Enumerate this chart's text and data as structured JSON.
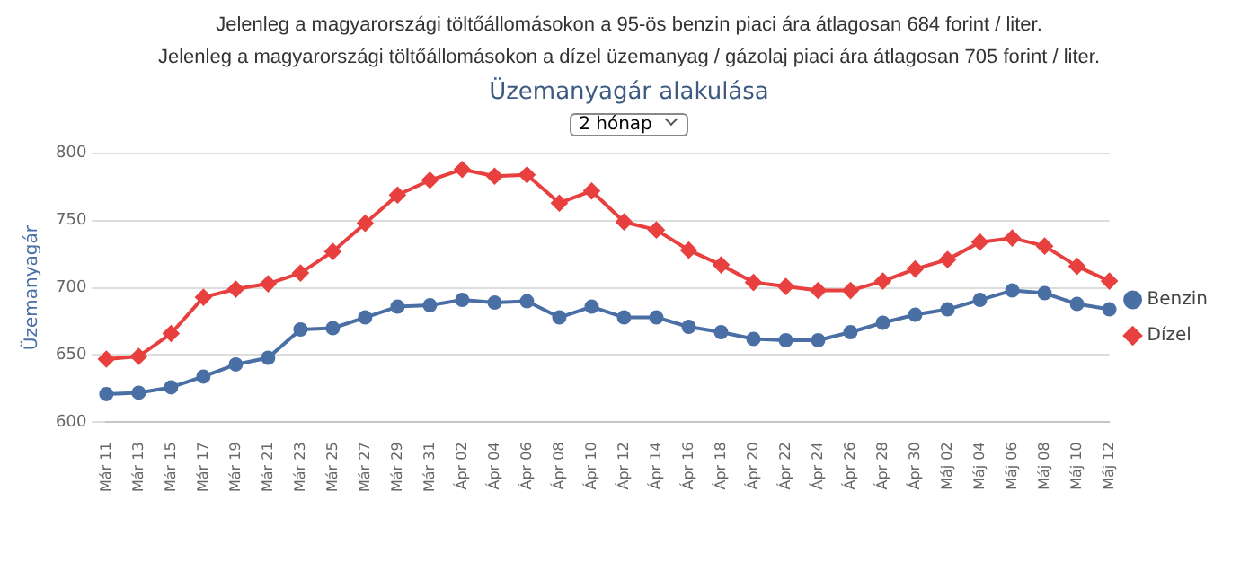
{
  "chart_data": {
    "type": "line",
    "title": "Üzemanyagár alakulása",
    "ylabel": "Üzemanyagár",
    "annotations": [
      "Jelenleg a magyarországi töltőállomásokon a 95-ös benzin piaci ára átlagosan 684 forint / liter.",
      "Jelenleg a magyarországi töltőállomásokon a dízel üzemanyag / gázolaj piaci ára átlagosan 705 forint / liter.",
      "2 hónap"
    ],
    "categories": [
      "Már 11",
      "Már 13",
      "Már 15",
      "Már 17",
      "Már 19",
      "Már 21",
      "Már 23",
      "Már 25",
      "Már 27",
      "Már 29",
      "Már 31",
      "Ápr 02",
      "Ápr 04",
      "Ápr 06",
      "Ápr 08",
      "Ápr 10",
      "Ápr 12",
      "Ápr 14",
      "Ápr 16",
      "Ápr 18",
      "Ápr 20",
      "Ápr 22",
      "Ápr 24",
      "Ápr 26",
      "Ápr 28",
      "Ápr 30",
      "Máj 02",
      "Máj 04",
      "Máj 06",
      "Máj 08",
      "Máj 10",
      "Máj 12"
    ],
    "series": [
      {
        "name": "Benzin",
        "color": "#4a6fa5",
        "marker": "circle",
        "values": [
          621,
          622,
          626,
          634,
          643,
          648,
          669,
          670,
          678,
          686,
          687,
          691,
          689,
          690,
          678,
          686,
          678,
          678,
          671,
          667,
          662,
          661,
          661,
          667,
          674,
          680,
          684,
          691,
          698,
          696,
          688,
          684
        ]
      },
      {
        "name": "Dízel",
        "color": "#e8403f",
        "marker": "diamond",
        "values": [
          647,
          649,
          666,
          693,
          699,
          703,
          711,
          727,
          748,
          769,
          780,
          788,
          783,
          784,
          763,
          772,
          749,
          743,
          728,
          717,
          704,
          701,
          698,
          698,
          705,
          714,
          721,
          734,
          737,
          731,
          716,
          705
        ]
      }
    ],
    "ylim": [
      600,
      800
    ],
    "yticks": [
      600,
      650,
      700,
      750,
      800
    ],
    "grid": "y",
    "legend": "right"
  }
}
